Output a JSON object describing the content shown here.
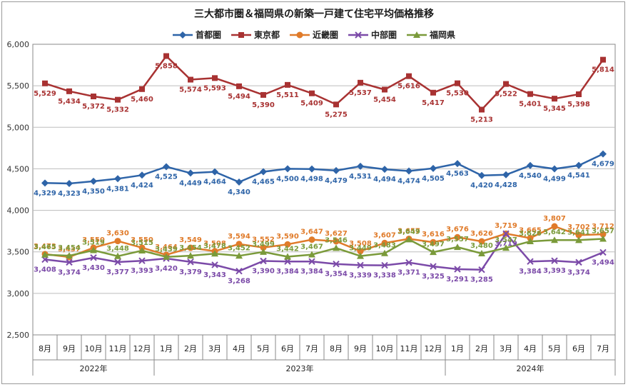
{
  "chart_data": {
    "type": "line",
    "title": "三大都市圏＆福岡県の新築一戸建て住宅平均価格推移",
    "categories": [
      "8月",
      "9月",
      "10月",
      "11月",
      "12月",
      "1月",
      "2月",
      "3月",
      "4月",
      "5月",
      "6月",
      "7月",
      "8月",
      "9月",
      "10月",
      "11月",
      "12月",
      "1月",
      "2月",
      "3月",
      "4月",
      "5月",
      "6月",
      "7月"
    ],
    "year_groups": [
      {
        "label": "2022年",
        "start": 0,
        "end": 4
      },
      {
        "label": "2023年",
        "start": 5,
        "end": 16
      },
      {
        "label": "2024年",
        "start": 17,
        "end": 23
      }
    ],
    "ylim": [
      2500,
      6000
    ],
    "yticks": [
      2500,
      3000,
      3500,
      4000,
      4500,
      5000,
      5500,
      6000
    ],
    "ytick_labels": [
      "2,500",
      "3,000",
      "3,500",
      "4,000",
      "4,500",
      "5,000",
      "5,500",
      "6,000"
    ],
    "grid": true,
    "legend_position": "top",
    "series": [
      {
        "name": "首都圏",
        "color": "#2e64a8",
        "marker": "diamond",
        "label_position": "below",
        "values": [
          4329,
          4323,
          4350,
          4381,
          4424,
          4525,
          4449,
          4464,
          4340,
          4465,
          4500,
          4498,
          4479,
          4531,
          4494,
          4474,
          4505,
          4563,
          4420,
          4428,
          4540,
          4499,
          4541,
          4679
        ],
        "labels": [
          "4,329",
          "4,323",
          "4,350",
          "4,381",
          "4,424",
          "4,525",
          "4,449",
          "4,464",
          "4,340",
          "4,465",
          "4,500",
          "4,498",
          "4,479",
          "4,531",
          "4,494",
          "4,474",
          "4,505",
          "4,563",
          "4,420",
          "4,428",
          "4,540",
          "4,499",
          "4,541",
          "4,679"
        ]
      },
      {
        "name": "東京都",
        "color": "#a83232",
        "marker": "square",
        "label_position": "below",
        "values": [
          5529,
          5434,
          5372,
          5332,
          5460,
          5858,
          5574,
          5593,
          5494,
          5390,
          5511,
          5409,
          5275,
          5537,
          5454,
          5616,
          5417,
          5530,
          5213,
          5522,
          5401,
          5345,
          5398,
          5814
        ],
        "labels": [
          "5,529",
          "5,434",
          "5,372",
          "5,332",
          "5,460",
          "5,858",
          "5,574",
          "5,593",
          "5,494",
          "5,390",
          "5,511",
          "5,409",
          "5,275",
          "5,537",
          "5,454",
          "5,616",
          "5,417",
          "5,530",
          "5,213",
          "5,522",
          "5,401",
          "5,345",
          "5,398",
          "5,814"
        ]
      },
      {
        "name": "近畿圏",
        "color": "#e07b2a",
        "marker": "circle",
        "label_position": "above",
        "values": [
          3473,
          3437,
          3550,
          3630,
          3550,
          3464,
          3549,
          3508,
          3594,
          3552,
          3590,
          3647,
          3627,
          3508,
          3607,
          3657,
          3616,
          3676,
          3626,
          3719,
          3665,
          3807,
          3702,
          3712
        ],
        "labels": [
          "3,473",
          "3,437",
          "3,550",
          "3,630",
          "3,550",
          "3,464",
          "3,549",
          "3,508",
          "3,594",
          "3,552",
          "3,590",
          "3,647",
          "3,627",
          "3,508",
          "3,607",
          "3,657",
          "3,616",
          "3,676",
          "3,626",
          "3,719",
          "3,665",
          "3,807",
          "3,702",
          "3,712"
        ]
      },
      {
        "name": "中部圏",
        "color": "#7b4aa8",
        "marker": "x",
        "label_position": "below",
        "values": [
          3408,
          3374,
          3430,
          3377,
          3393,
          3420,
          3379,
          3343,
          3268,
          3390,
          3384,
          3384,
          3354,
          3339,
          3338,
          3371,
          3325,
          3291,
          3285,
          3719,
          3384,
          3393,
          3374,
          3494
        ],
        "labels": [
          "3,408",
          "3,374",
          "3,430",
          "3,377",
          "3,393",
          "3,420",
          "3,379",
          "3,343",
          "3,268",
          "3,390",
          "3,384",
          "3,384",
          "3,354",
          "3,339",
          "3,338",
          "3,371",
          "3,325",
          "3,291",
          "3,285",
          "3,719",
          "3,384",
          "3,393",
          "3,374",
          "3,494"
        ]
      },
      {
        "name": "福岡県",
        "color": "#7a9a3a",
        "marker": "triangle",
        "label_position": "above",
        "values": [
          3465,
          3454,
          3519,
          3448,
          3515,
          3439,
          3454,
          3478,
          3452,
          3499,
          3442,
          3467,
          3546,
          3449,
          3483,
          3649,
          3497,
          3557,
          3480,
          3547,
          3626,
          3642,
          3641,
          3657
        ],
        "labels": [
          "3,465",
          "3,454",
          "3,519",
          "3,448",
          "3,515",
          "3,439",
          "3,454",
          "3,478",
          "3,452",
          "3,499",
          "3,442",
          "3,467",
          "3,546",
          "3,449",
          "3,483",
          "3,649",
          "3,497",
          "3,557",
          "3,480",
          "3,547",
          "3,626",
          "3,642",
          "3,641",
          "3,657"
        ]
      }
    ]
  }
}
